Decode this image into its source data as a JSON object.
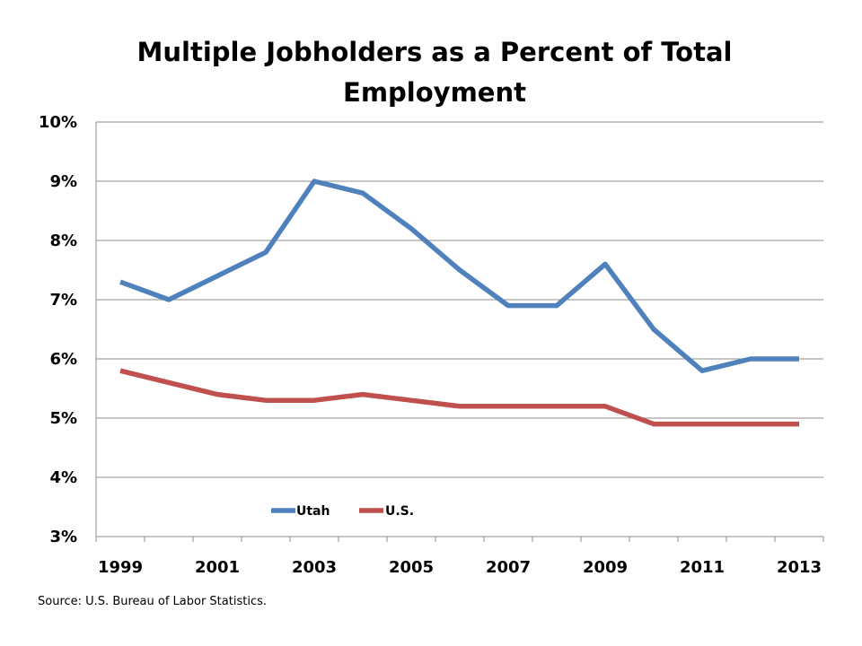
{
  "chart_data": {
    "type": "line",
    "title_lines": [
      "Multiple Jobholders as a Percent of Total",
      "Employment"
    ],
    "x": [
      1999,
      2000,
      2001,
      2002,
      2003,
      2004,
      2005,
      2006,
      2007,
      2008,
      2009,
      2010,
      2011,
      2012,
      2013
    ],
    "x_tick_labels": [
      "1999",
      "2001",
      "2003",
      "2005",
      "2007",
      "2009",
      "2011",
      "2013"
    ],
    "y_tick_labels": [
      "3%",
      "4%",
      "5%",
      "6%",
      "7%",
      "8%",
      "9%",
      "10%"
    ],
    "ylim": [
      3,
      10
    ],
    "grid": true,
    "legend_position": "bottom-left inside plot",
    "series": [
      {
        "name": "Utah",
        "color": "#4F81BD",
        "values": [
          7.3,
          7.0,
          7.4,
          7.8,
          9.0,
          8.8,
          8.2,
          7.5,
          6.9,
          6.9,
          7.6,
          6.5,
          5.8,
          6.0,
          6.0
        ]
      },
      {
        "name": "U.S.",
        "color": "#C0504D",
        "values": [
          5.8,
          5.6,
          5.4,
          5.3,
          5.3,
          5.4,
          5.3,
          5.2,
          5.2,
          5.2,
          5.2,
          4.9,
          4.9,
          4.9,
          4.9
        ]
      }
    ]
  },
  "source_text": "Source: U.S. Bureau of Labor Statistics."
}
